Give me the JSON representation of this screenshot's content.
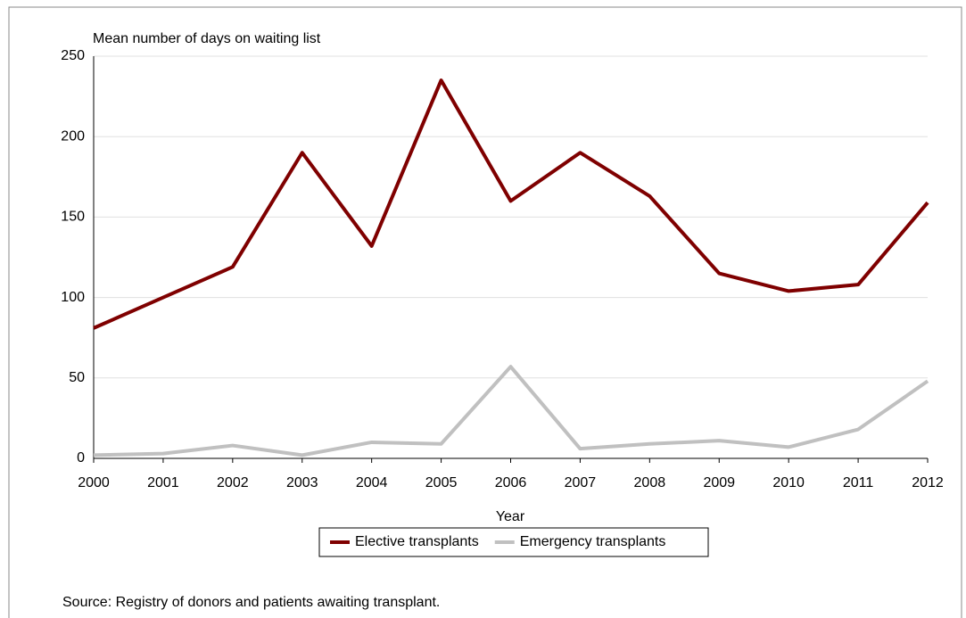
{
  "chart_data": {
    "type": "line",
    "y_axis_label": "Mean number of days on waiting list",
    "x_axis_label": "Year",
    "source": "Source: Registry of donors and patients awaiting transplant.",
    "x": [
      2000,
      2001,
      2002,
      2003,
      2004,
      2005,
      2006,
      2007,
      2008,
      2009,
      2010,
      2011,
      2012
    ],
    "series": [
      {
        "name": "Elective transplants",
        "color": "#7f0000",
        "values": [
          81,
          100,
          119,
          190,
          132,
          235,
          160,
          190,
          163,
          115,
          104,
          108,
          159
        ]
      },
      {
        "name": "Emergency transplants",
        "color": "#c0c0c0",
        "values": [
          2,
          3,
          8,
          2,
          10,
          9,
          57,
          6,
          9,
          11,
          7,
          18,
          48
        ]
      }
    ],
    "xlim": [
      2000,
      2012
    ],
    "xticks": [
      2000,
      2001,
      2002,
      2003,
      2004,
      2005,
      2006,
      2007,
      2008,
      2009,
      2010,
      2011,
      2012
    ],
    "ylim": [
      0,
      250
    ],
    "yticks": [
      0,
      50,
      100,
      150,
      200,
      250
    ],
    "grid": true,
    "legend": "bottom"
  }
}
